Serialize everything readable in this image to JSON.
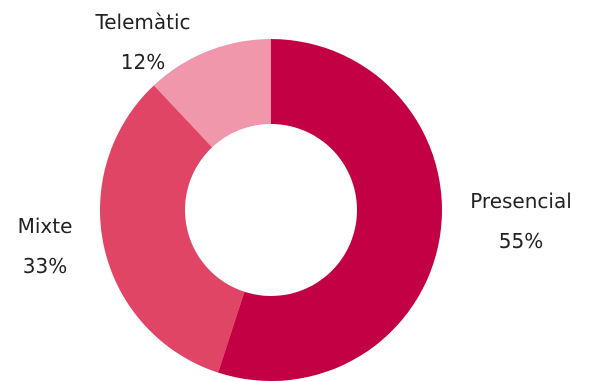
{
  "chart_data": {
    "type": "pie",
    "variant": "donut",
    "title": "",
    "slices": [
      {
        "label": "Presencial",
        "value": 55,
        "value_label": "55%",
        "color": "#C40045"
      },
      {
        "label": "Mixte",
        "value": 33,
        "value_label": "33%",
        "color": "#E04565"
      },
      {
        "label": "Telemàtic",
        "value": 12,
        "value_label": "12%",
        "color": "#F097AB"
      }
    ],
    "start_angle": "12 o'clock",
    "direction": "clockwise",
    "legend": "none",
    "labels": "outside slices"
  }
}
